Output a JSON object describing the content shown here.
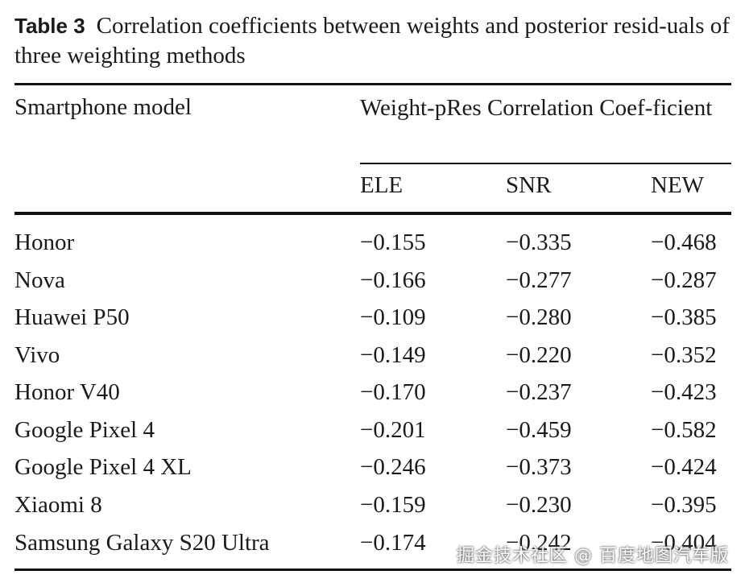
{
  "caption": {
    "label": "Table 3",
    "text": "Correlation coefficients between weights and posterior resid-uals of three weighting methods"
  },
  "header": {
    "model": "Smartphone model",
    "group": "Weight-pRes Correlation Coef-ficient",
    "ele": "ELE",
    "snr": "SNR",
    "new": "NEW"
  },
  "rows": [
    {
      "model": "Honor",
      "ele": "−0.155",
      "snr": "−0.335",
      "new": "−0.468"
    },
    {
      "model": "Nova",
      "ele": "−0.166",
      "snr": "−0.277",
      "new": "−0.287"
    },
    {
      "model": "Huawei P50",
      "ele": "−0.109",
      "snr": "−0.280",
      "new": "−0.385"
    },
    {
      "model": "Vivo",
      "ele": "−0.149",
      "snr": "−0.220",
      "new": "−0.352"
    },
    {
      "model": "Honor V40",
      "ele": "−0.170",
      "snr": "−0.237",
      "new": "−0.423"
    },
    {
      "model": "Google Pixel 4",
      "ele": "−0.201",
      "snr": "−0.459",
      "new": "−0.582"
    },
    {
      "model": "Google Pixel 4 XL",
      "ele": "−0.246",
      "snr": "−0.373",
      "new": "−0.424"
    },
    {
      "model": "Xiaomi 8",
      "ele": "−0.159",
      "snr": "−0.230",
      "new": "−0.395"
    },
    {
      "model": "Samsung Galaxy S20 Ultra",
      "ele": "−0.174",
      "snr": "−0.242",
      "new": "−0.404"
    }
  ],
  "watermark": "掘金技术社区 @ 百度地图汽车版"
}
